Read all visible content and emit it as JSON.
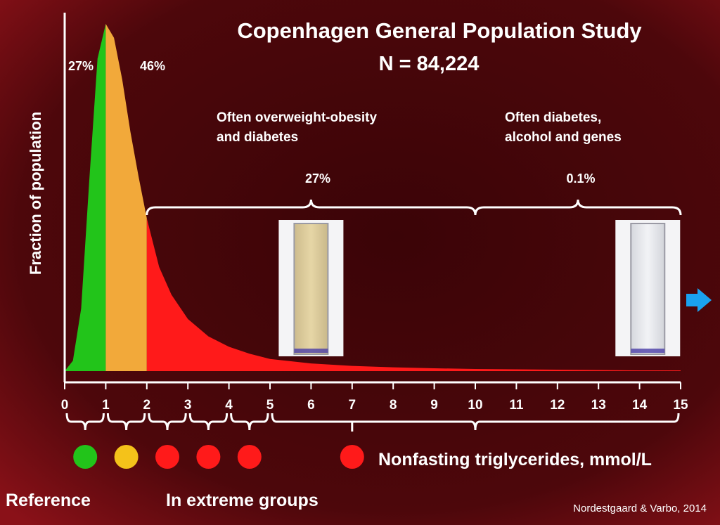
{
  "title": "Copenhagen General Population Study",
  "subtitle": "N = 84,224",
  "ylabel": "Fraction of population",
  "xlabel": "Nonfasting triglycerides, mmol/L",
  "citation": "Nordestgaard & Varbo, 2014",
  "legend": {
    "reference_label": "Reference",
    "extreme_label": "In extreme groups"
  },
  "annotations": [
    {
      "label": "27%",
      "text_lines": []
    },
    {
      "label": "46%",
      "text_lines": []
    },
    {
      "label": "27%",
      "text_lines": [
        "Often overweight-obesity",
        "and diabetes"
      ]
    },
    {
      "label": "0.1%",
      "text_lines": [
        "Often diabetes,",
        "alcohol and genes"
      ]
    }
  ],
  "colors": {
    "background": "#3a0a0c",
    "green": "#22c41a",
    "orange": "#f2a93a",
    "red": "#ff1a1a",
    "dot_yellow": "#f4c21a",
    "arrow_blue": "#1aa2f0",
    "text": "#ffffff"
  },
  "icons": {
    "arrow": "right-arrow-icon"
  },
  "chart_data": {
    "type": "area",
    "xlim": [
      0,
      15
    ],
    "ticks": [
      0,
      1,
      2,
      3,
      4,
      5,
      6,
      7,
      8,
      9,
      10,
      11,
      12,
      13,
      14,
      15
    ],
    "curve": {
      "x": [
        0,
        0.2,
        0.4,
        0.6,
        0.8,
        1.0,
        1.2,
        1.4,
        1.6,
        1.8,
        2.0,
        2.3,
        2.6,
        3.0,
        3.5,
        4.0,
        4.5,
        5.0,
        6.0,
        7.0,
        8.0,
        9.0,
        10.0,
        11.0,
        12.0,
        13.0,
        14.0,
        15.0
      ],
      "y": [
        0.0,
        0.03,
        0.18,
        0.55,
        0.9,
        1.0,
        0.96,
        0.84,
        0.69,
        0.56,
        0.44,
        0.3,
        0.22,
        0.15,
        0.1,
        0.07,
        0.05,
        0.035,
        0.022,
        0.015,
        0.011,
        0.008,
        0.006,
        0.005,
        0.004,
        0.003,
        0.002,
        0.002
      ]
    },
    "segments": [
      {
        "from": 0,
        "to": 1,
        "color": "green",
        "share": "27%"
      },
      {
        "from": 1,
        "to": 2,
        "color": "orange",
        "share": "46%"
      },
      {
        "from": 2,
        "to": 15,
        "color": "red",
        "share": "27%"
      }
    ],
    "groups": [
      {
        "from": 0,
        "to": 1,
        "dot": "green"
      },
      {
        "from": 1,
        "to": 2,
        "dot": "dot_yellow"
      },
      {
        "from": 2,
        "to": 3,
        "dot": "red"
      },
      {
        "from": 3,
        "to": 4,
        "dot": "red"
      },
      {
        "from": 4,
        "to": 5,
        "dot": "red"
      },
      {
        "from": 5,
        "to": 15,
        "dot": "red"
      }
    ],
    "brackets": [
      {
        "from": 2,
        "to": 10,
        "annotation": 2
      },
      {
        "from": 10,
        "to": 15,
        "annotation": 3
      }
    ],
    "tubes": [
      {
        "center_x": 6,
        "contents": "turbid yellow"
      },
      {
        "center_x": 14.2,
        "contents": "milky white"
      }
    ]
  }
}
